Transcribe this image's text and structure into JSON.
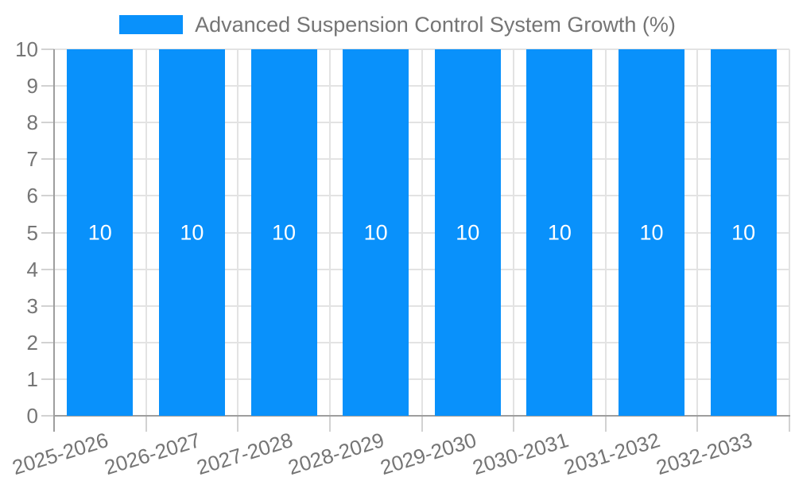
{
  "legend": {
    "label": "Advanced Suspension Control System Growth (%)"
  },
  "colors": {
    "bar": "#0991fb",
    "bar_value_text": "#ffffff",
    "axis_text": "#757575",
    "gridline": "#e3e3e3",
    "axis_line": "#9e9e9e",
    "tick": "#d2d2d2",
    "background": "#ffffff"
  },
  "chart_data": {
    "type": "bar",
    "title": "Advanced Suspension Control System Growth (%)",
    "categories": [
      "2025-2026",
      "2026-2027",
      "2027-2028",
      "2028-2029",
      "2029-2030",
      "2030-2031",
      "2031-2032",
      "2032-2033"
    ],
    "values": [
      10,
      10,
      10,
      10,
      10,
      10,
      10,
      10
    ],
    "xlabel": "",
    "ylabel": "",
    "ylim": [
      0,
      10
    ],
    "yticks": [
      0,
      1,
      2,
      3,
      4,
      5,
      6,
      7,
      8,
      9,
      10
    ],
    "grid": true,
    "legend_position": "top-center",
    "bar_value_labels_shown": true,
    "x_label_rotation_deg": -17
  }
}
